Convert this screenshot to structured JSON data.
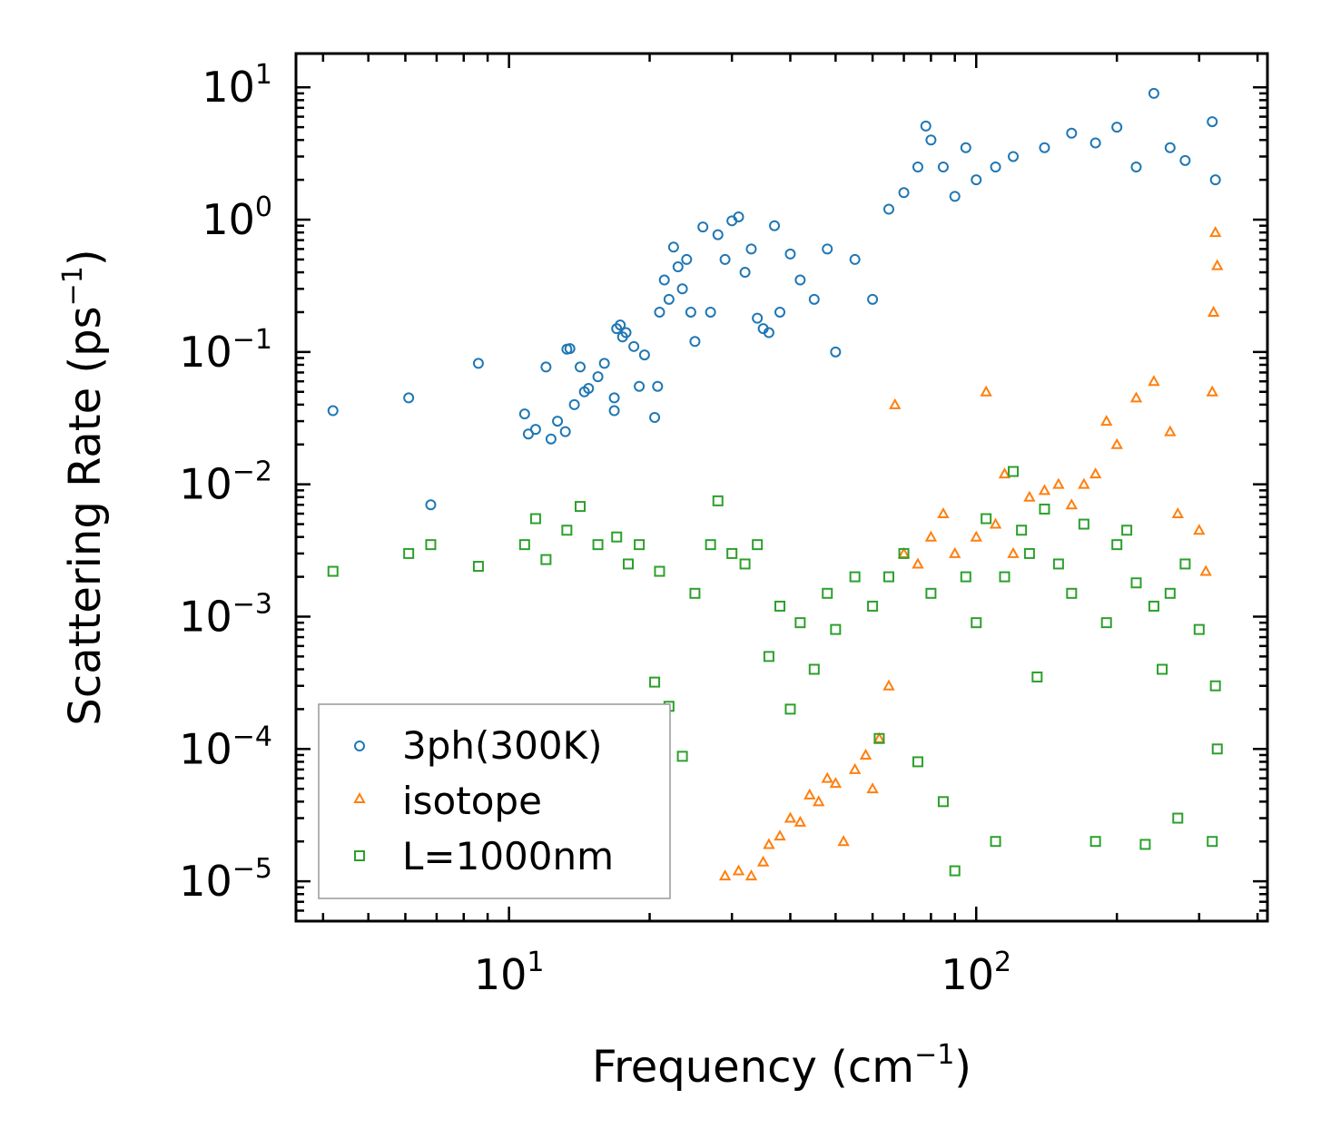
{
  "chart_data": {
    "type": "scatter",
    "title": "",
    "xlabel": "Frequency (cm",
    "xlabel_sup": "−1",
    "xlabel_end": ")",
    "ylabel": "Scattering Rate (ps",
    "ylabel_sup": "−1",
    "ylabel_end": ")",
    "xscale": "log",
    "yscale": "log",
    "xlim": [
      3.5,
      420
    ],
    "ylim": [
      5e-06,
      18
    ],
    "x_ticks": [
      {
        "value": 10,
        "base": "10",
        "exp": "1"
      },
      {
        "value": 100,
        "base": "10",
        "exp": "2"
      }
    ],
    "y_ticks": [
      {
        "value": 10,
        "base": "10",
        "exp": "1"
      },
      {
        "value": 1,
        "base": "10",
        "exp": "0"
      },
      {
        "value": 0.1,
        "base": "10",
        "exp": "−1"
      },
      {
        "value": 0.01,
        "base": "10",
        "exp": "−2"
      },
      {
        "value": 0.001,
        "base": "10",
        "exp": "−3"
      },
      {
        "value": 0.0001,
        "base": "10",
        "exp": "−4"
      },
      {
        "value": 1e-05,
        "base": "10",
        "exp": "−5"
      }
    ],
    "legend_position": "bottom-left",
    "series": [
      {
        "name": "3ph(300K)",
        "marker": "circle",
        "color": "#1f77b4",
        "points": [
          [
            4.2,
            0.036
          ],
          [
            6.1,
            0.045
          ],
          [
            6.8,
            0.007
          ],
          [
            8.6,
            0.082
          ],
          [
            10.8,
            0.034
          ],
          [
            11.0,
            0.024
          ],
          [
            11.4,
            0.026
          ],
          [
            12.0,
            0.077
          ],
          [
            12.3,
            0.022
          ],
          [
            12.7,
            0.03
          ],
          [
            13.2,
            0.025
          ],
          [
            13.3,
            0.105
          ],
          [
            13.5,
            0.106
          ],
          [
            13.8,
            0.04
          ],
          [
            14.2,
            0.077
          ],
          [
            14.5,
            0.05
          ],
          [
            14.8,
            0.053
          ],
          [
            15.5,
            0.065
          ],
          [
            16.0,
            0.082
          ],
          [
            16.8,
            0.045
          ],
          [
            16.8,
            0.036
          ],
          [
            17.0,
            0.15
          ],
          [
            17.3,
            0.16
          ],
          [
            17.5,
            0.13
          ],
          [
            17.8,
            0.14
          ],
          [
            18.5,
            0.11
          ],
          [
            19.0,
            0.055
          ],
          [
            19.5,
            0.095
          ],
          [
            20.5,
            0.032
          ],
          [
            20.8,
            0.055
          ],
          [
            21.0,
            0.2
          ],
          [
            21.5,
            0.35
          ],
          [
            22.0,
            0.25
          ],
          [
            22.5,
            0.62
          ],
          [
            23.0,
            0.44
          ],
          [
            23.5,
            0.3
          ],
          [
            24.0,
            0.5
          ],
          [
            24.5,
            0.2
          ],
          [
            25.0,
            0.12
          ],
          [
            26.0,
            0.88
          ],
          [
            27.0,
            0.2
          ],
          [
            28.0,
            0.77
          ],
          [
            29.0,
            0.5
          ],
          [
            30.0,
            0.98
          ],
          [
            31.0,
            1.05
          ],
          [
            32.0,
            0.4
          ],
          [
            33.0,
            0.6
          ],
          [
            34.0,
            0.18
          ],
          [
            35.0,
            0.15
          ],
          [
            36.0,
            0.14
          ],
          [
            37.0,
            0.9
          ],
          [
            38.0,
            0.2
          ],
          [
            40.0,
            0.55
          ],
          [
            42.0,
            0.35
          ],
          [
            45.0,
            0.25
          ],
          [
            48.0,
            0.6
          ],
          [
            50.0,
            0.1
          ],
          [
            55.0,
            0.5
          ],
          [
            60.0,
            0.25
          ],
          [
            65.0,
            1.2
          ],
          [
            70.0,
            1.6
          ],
          [
            75.0,
            2.5
          ],
          [
            78.0,
            5.1
          ],
          [
            80.0,
            4.0
          ],
          [
            85.0,
            2.5
          ],
          [
            90.0,
            1.5
          ],
          [
            95.0,
            3.5
          ],
          [
            100.0,
            2.0
          ],
          [
            110.0,
            2.5
          ],
          [
            120.0,
            3.0
          ],
          [
            140.0,
            3.5
          ],
          [
            160.0,
            4.5
          ],
          [
            180.0,
            3.8
          ],
          [
            200.0,
            5.0
          ],
          [
            220.0,
            2.5
          ],
          [
            240.0,
            9.0
          ],
          [
            260.0,
            3.5
          ],
          [
            280.0,
            2.8
          ],
          [
            320.0,
            5.5
          ],
          [
            325.0,
            2.0
          ]
        ]
      },
      {
        "name": "isotope",
        "marker": "triangle",
        "color": "#ff7f0e",
        "points": [
          [
            29.0,
            1.1e-05
          ],
          [
            31.0,
            1.2e-05
          ],
          [
            33.0,
            1.1e-05
          ],
          [
            35.0,
            1.4e-05
          ],
          [
            36.0,
            1.9e-05
          ],
          [
            38.0,
            2.2e-05
          ],
          [
            40.0,
            3e-05
          ],
          [
            42.0,
            2.8e-05
          ],
          [
            44.0,
            4.5e-05
          ],
          [
            46.0,
            4e-05
          ],
          [
            48.0,
            6e-05
          ],
          [
            50.0,
            5.5e-05
          ],
          [
            52.0,
            2e-05
          ],
          [
            55.0,
            7e-05
          ],
          [
            58.0,
            9e-05
          ],
          [
            60.0,
            5e-05
          ],
          [
            62.0,
            0.00012
          ],
          [
            65.0,
            0.0003
          ],
          [
            67.0,
            0.04
          ],
          [
            70.0,
            0.003
          ],
          [
            75.0,
            0.0025
          ],
          [
            80.0,
            0.004
          ],
          [
            85.0,
            0.006
          ],
          [
            90.0,
            0.003
          ],
          [
            100.0,
            0.004
          ],
          [
            105.0,
            0.05
          ],
          [
            110.0,
            0.005
          ],
          [
            115.0,
            0.012
          ],
          [
            120.0,
            0.003
          ],
          [
            130.0,
            0.008
          ],
          [
            140.0,
            0.009
          ],
          [
            150.0,
            0.01
          ],
          [
            160.0,
            0.007
          ],
          [
            170.0,
            0.01
          ],
          [
            180.0,
            0.012
          ],
          [
            190.0,
            0.03
          ],
          [
            200.0,
            0.02
          ],
          [
            220.0,
            0.045
          ],
          [
            240.0,
            0.06
          ],
          [
            260.0,
            0.025
          ],
          [
            270.0,
            0.006
          ],
          [
            300.0,
            0.0045
          ],
          [
            310.0,
            0.0022
          ],
          [
            320.0,
            0.05
          ],
          [
            322.0,
            0.2
          ],
          [
            325.0,
            0.8
          ],
          [
            328.0,
            0.45
          ]
        ]
      },
      {
        "name": "L=1000nm",
        "marker": "square",
        "color": "#2ca02c",
        "points": [
          [
            4.2,
            0.0022
          ],
          [
            6.1,
            0.003
          ],
          [
            6.8,
            0.0035
          ],
          [
            8.6,
            0.0024
          ],
          [
            10.8,
            0.0035
          ],
          [
            11.4,
            0.0055
          ],
          [
            12.0,
            0.0027
          ],
          [
            13.3,
            0.0045
          ],
          [
            14.2,
            0.0068
          ],
          [
            15.5,
            0.0035
          ],
          [
            17.0,
            0.004
          ],
          [
            18.0,
            0.0025
          ],
          [
            19.0,
            0.0035
          ],
          [
            20.5,
            0.00032
          ],
          [
            21.0,
            0.0022
          ],
          [
            22.0,
            0.00021
          ],
          [
            23.5,
            8.8e-05
          ],
          [
            25.0,
            0.0015
          ],
          [
            27.0,
            0.0035
          ],
          [
            28.0,
            0.0075
          ],
          [
            30.0,
            0.003
          ],
          [
            32.0,
            0.0025
          ],
          [
            34.0,
            0.0035
          ],
          [
            36.0,
            0.0005
          ],
          [
            38.0,
            0.0012
          ],
          [
            40.0,
            0.0002
          ],
          [
            42.0,
            0.0009
          ],
          [
            45.0,
            0.0004
          ],
          [
            48.0,
            0.0015
          ],
          [
            50.0,
            0.0008
          ],
          [
            55.0,
            0.002
          ],
          [
            60.0,
            0.0012
          ],
          [
            62.0,
            0.00012
          ],
          [
            65.0,
            0.002
          ],
          [
            70.0,
            0.003
          ],
          [
            75.0,
            8e-05
          ],
          [
            80.0,
            0.0015
          ],
          [
            85.0,
            4e-05
          ],
          [
            90.0,
            1.2e-05
          ],
          [
            95.0,
            0.002
          ],
          [
            100.0,
            0.0009
          ],
          [
            105.0,
            0.0055
          ],
          [
            110.0,
            2e-05
          ],
          [
            115.0,
            0.002
          ],
          [
            120.0,
            0.0125
          ],
          [
            125.0,
            0.0045
          ],
          [
            130.0,
            0.003
          ],
          [
            135.0,
            0.00035
          ],
          [
            140.0,
            0.0065
          ],
          [
            150.0,
            0.0025
          ],
          [
            160.0,
            0.0015
          ],
          [
            170.0,
            0.005
          ],
          [
            180.0,
            2e-05
          ],
          [
            190.0,
            0.0009
          ],
          [
            200.0,
            0.0035
          ],
          [
            210.0,
            0.0045
          ],
          [
            220.0,
            0.0018
          ],
          [
            230.0,
            1.9e-05
          ],
          [
            240.0,
            0.0012
          ],
          [
            250.0,
            0.0004
          ],
          [
            260.0,
            0.0015
          ],
          [
            270.0,
            3e-05
          ],
          [
            280.0,
            0.0025
          ],
          [
            300.0,
            0.0008
          ],
          [
            320.0,
            2e-05
          ],
          [
            325.0,
            0.0003
          ],
          [
            328.0,
            0.0001
          ]
        ]
      }
    ]
  }
}
